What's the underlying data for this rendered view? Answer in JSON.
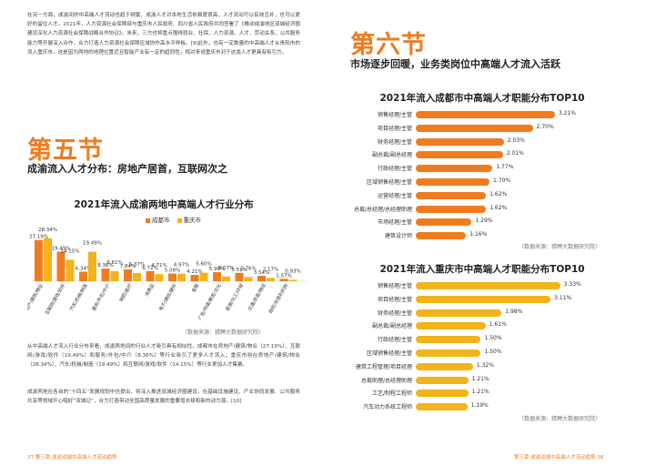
{
  "left_page": {
    "intro_paragraph": "在另一方面，成渝间的中高端人才流动也趋于频繁，成渝人才对本地生活依赖度很高，人才流动可以有效互补，也可以更好的留住人才。2021年，人力资源社会保障部与重庆市人民政府、四川省人民政府共同签署了《推动成渝地区双城经济圈建设深化人力资源社会保障战略合作协议》。未来，三方也将重点围绕就业、社保、人力资源、人才、劳动关系、公共服务能力等开展深入合作，合力打造人力资源社会保障区域协作高水平样板。[9]此外，也有一定数量的中高端人才从贵阳市的流入重庆市，这是因为两地的地理位置近且智能产业有一定的趋同性，相对来说重庆市对于这类人才更具有吸引力。",
    "section_number": "第五节",
    "section_title": "成渝流入人才分布：房地产居首，互联网次之",
    "chart_title": "2021年流入成渝两地中高端人才行业分布",
    "legend": {
      "chengdu": "成都市",
      "chongqing": "重庆市"
    },
    "source": "（数据来源：猎聘大数据研究院）",
    "body_paragraph_1": "从中高端人才流入行业分布来看，成渝两地间的行业人才吸引具有相似性，成都市在房地产/建筑/物业（27.19%）、互联网/游戏/软件（19.49%）和服务/外包/中介（8.36%）等行业吸引了更多人才流入；重庆市则在房地产/建筑/物业（28.34%）、汽车/机械/制造（19.49%）和互联网/游戏/软件（14.15%）等行业更加人才集聚。",
    "body_paragraph_2": "成渝两地在各自的“十四五”发展规划中也提出，将深入推进双城经济圈建设，在基础设施建设、产业协同发展、公共服务共享等领域开心唱好“双城记”，合力打造带动全国高质量发展的重要增长极和新的动力源。[10]",
    "footer": "37  第三章  成渝双城中高端人才流动趋势"
  },
  "right_page": {
    "section_number": "第六节",
    "section_title": "市场逐步回暖，业务类岗位中高端人才流入活跃",
    "chart1_title": "2021年流入成都市中高端人才职能分布TOP10",
    "chart2_title": "2021年流入重庆市中高端人才职能分布TOP10",
    "source1": "（数据来源：猎聘大数据研究院）",
    "source2": "（数据来源：猎聘大数据研究院）",
    "footer": "第三章  成渝双城中高端人才流动趋势  38"
  },
  "colors": {
    "chengdu": "#f07c1e",
    "chongqing": "#f2b31b",
    "accent": "#f07c1e"
  },
  "chart_data": [
    {
      "type": "bar",
      "title": "2021年流入成渝两地中高端人才行业分布",
      "categories": [
        "房地产/建筑/物业",
        "互联网/游戏/软件",
        "汽车/机械/制造",
        "服务/外包/中介",
        "制药/医疗",
        "消费品",
        "电子/通信/硬件",
        "金融",
        "广告/传媒/教育/文化",
        "能源/化工/环保",
        "交通/贸易/物流",
        "政府/非营利机构"
      ],
      "series": [
        {
          "name": "成都市",
          "values": [
            27.19,
            19.49,
            6.34,
            8.36,
            7.84,
            6.72,
            5.08,
            4.21,
            5.98,
            5.51,
            3.54,
            1.57
          ]
        },
        {
          "name": "重庆市",
          "values": [
            28.34,
            14.15,
            19.49,
            6.61,
            5.37,
            4.71,
            4.97,
            5.6,
            3.07,
            2.76,
            2.17,
            0.93
          ]
        }
      ],
      "value_labels": [
        "28.34%",
        "27.19%",
        "19.49%",
        "14.15%",
        "19.49%",
        "6.34%",
        "8.36%",
        "6.61%",
        "7.84%",
        "5.37%",
        "6.72%",
        "4.71%",
        "5.08%",
        "4.97%",
        "5.60%",
        "4.21%",
        "5.98%",
        "5.51%",
        "3.54%",
        "3.07%",
        "2.76%",
        "2.17%",
        "1.57%",
        "0.93%"
      ],
      "legend": "top-right",
      "grid": false
    },
    {
      "type": "bar",
      "title": "2021年流入成都市中高端人才职能分布TOP10",
      "categories": [
        "销售经理/主管",
        "项目经理/主管",
        "财务经理/主管",
        "副总裁/副总经理",
        "行政经理/主管",
        "区域销售经理/主管",
        "运营经理/主管",
        "总裁/总经理/总经理助理",
        "市场经理/主管",
        "建筑设计师"
      ],
      "values": [
        3.21,
        2.7,
        2.03,
        2.01,
        1.77,
        1.7,
        1.62,
        1.62,
        1.29,
        1.16
      ],
      "value_labels": [
        "3.21%",
        "2.70%",
        "2.03%",
        "2.01%",
        "1.77%",
        "1.70%",
        "1.62%",
        "1.62%",
        "1.29%",
        "1.16%"
      ]
    },
    {
      "type": "bar",
      "title": "2021年流入重庆市中高端人才职能分布TOP10",
      "categories": [
        "销售经理/主管",
        "项目经理/主管",
        "财务经理/主管",
        "副总裁/副总经理",
        "行政经理/主管",
        "区域销售经理/主管",
        "建筑工程管理/项目经理",
        "总裁助理/总经理助理",
        "工艺/制程工程师",
        "汽车动力系统工程师"
      ],
      "values": [
        3.33,
        3.11,
        1.98,
        1.61,
        1.5,
        1.5,
        1.32,
        1.21,
        1.21,
        1.19
      ],
      "value_labels": [
        "3.33%",
        "3.11%",
        "1.98%",
        "1.61%",
        "1.50%",
        "1.50%",
        "1.32%",
        "1.21%",
        "1.21%",
        "1.19%"
      ]
    }
  ]
}
